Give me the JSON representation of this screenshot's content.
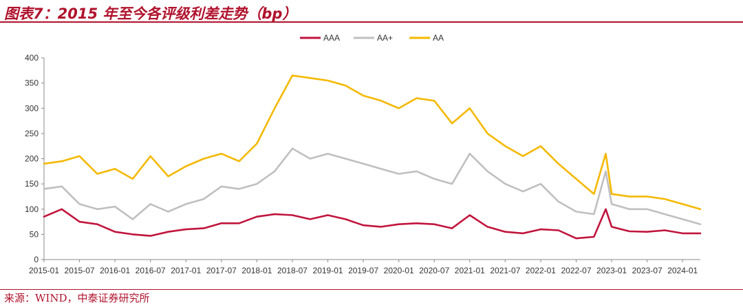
{
  "header": {
    "title": "图表7：2015 年至今各评级利差走势（bp）"
  },
  "footer": {
    "source": "来源：WIND，中泰证券研究所"
  },
  "chart_data": {
    "type": "line",
    "title": "图表7：2015 年至今各评级利差走势（bp）",
    "xlabel": "",
    "ylabel": "",
    "ylim": [
      0,
      400
    ],
    "yticks": [
      0,
      50,
      100,
      150,
      200,
      250,
      300,
      350,
      400
    ],
    "xlim": [
      "2015-01",
      "2024-04"
    ],
    "xticks": [
      "2015-01",
      "2015-07",
      "2016-01",
      "2016-07",
      "2017-01",
      "2017-07",
      "2018-01",
      "2018-07",
      "2019-01",
      "2019-07",
      "2020-01",
      "2020-07",
      "2021-01",
      "2021-07",
      "2022-01",
      "2022-07",
      "2023-01",
      "2023-07",
      "2024-01"
    ],
    "legend": {
      "position": "top-center"
    },
    "grid": false,
    "x": [
      "2015-01",
      "2015-04",
      "2015-07",
      "2015-10",
      "2016-01",
      "2016-04",
      "2016-07",
      "2016-10",
      "2017-01",
      "2017-04",
      "2017-07",
      "2017-10",
      "2018-01",
      "2018-04",
      "2018-07",
      "2018-10",
      "2019-01",
      "2019-04",
      "2019-07",
      "2019-10",
      "2020-01",
      "2020-04",
      "2020-07",
      "2020-10",
      "2021-01",
      "2021-04",
      "2021-07",
      "2021-10",
      "2022-01",
      "2022-04",
      "2022-07",
      "2022-10",
      "2022-12",
      "2023-01",
      "2023-04",
      "2023-07",
      "2023-10",
      "2024-01",
      "2024-04"
    ],
    "series": [
      {
        "name": "AAA",
        "color": "#c0143c",
        "values": [
          85,
          100,
          75,
          70,
          55,
          50,
          47,
          55,
          60,
          62,
          72,
          72,
          85,
          90,
          88,
          80,
          88,
          80,
          68,
          65,
          70,
          72,
          70,
          62,
          88,
          65,
          55,
          52,
          60,
          58,
          42,
          45,
          100,
          65,
          56,
          55,
          58,
          52,
          52
        ]
      },
      {
        "name": "AA+",
        "color": "#bfbfbf",
        "values": [
          140,
          145,
          110,
          100,
          105,
          80,
          110,
          95,
          110,
          120,
          145,
          140,
          150,
          175,
          220,
          200,
          210,
          200,
          190,
          180,
          170,
          175,
          160,
          150,
          210,
          175,
          150,
          135,
          150,
          115,
          95,
          90,
          175,
          110,
          100,
          100,
          90,
          80,
          70
        ]
      },
      {
        "name": "AA",
        "color": "#f5b800",
        "values": [
          190,
          195,
          205,
          170,
          180,
          160,
          205,
          165,
          185,
          200,
          210,
          195,
          230,
          300,
          365,
          360,
          355,
          345,
          325,
          315,
          300,
          320,
          315,
          270,
          300,
          250,
          225,
          205,
          225,
          190,
          160,
          130,
          210,
          130,
          125,
          125,
          120,
          110,
          100
        ]
      }
    ]
  }
}
